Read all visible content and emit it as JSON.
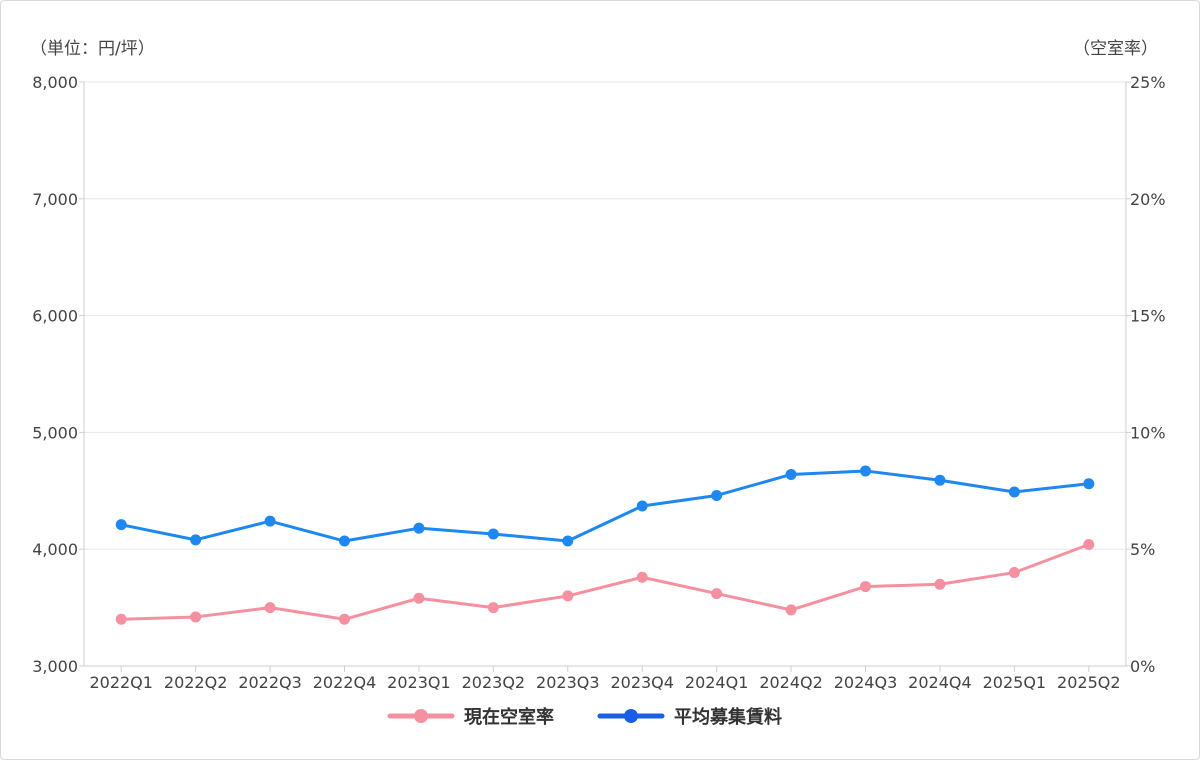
{
  "chart_data": {
    "type": "line",
    "left_unit_label": "（単位：円/坪）",
    "right_unit_label": "（空室率）",
    "categories": [
      "2022Q1",
      "2022Q2",
      "2022Q3",
      "2022Q4",
      "2023Q1",
      "2023Q2",
      "2023Q3",
      "2023Q4",
      "2024Q1",
      "2024Q2",
      "2024Q3",
      "2024Q4",
      "2025Q1",
      "2025Q2"
    ],
    "y_left": {
      "min": 3000,
      "max": 8000,
      "ticks": [
        "3,000",
        "4,000",
        "5,000",
        "6,000",
        "7,000",
        "8,000"
      ]
    },
    "y_right": {
      "min": 0,
      "max": 25,
      "ticks": [
        "0%",
        "5%",
        "10%",
        "15%",
        "20%",
        "25%"
      ]
    },
    "grid": true,
    "legend_position": "bottom",
    "series": [
      {
        "name": "現在空室率",
        "axis": "right",
        "color": "#f4909f",
        "values": [
          2.0,
          2.1,
          2.5,
          2.0,
          2.9,
          2.5,
          3.0,
          3.8,
          3.1,
          2.4,
          3.4,
          3.5,
          4.0,
          5.2
        ]
      },
      {
        "name": "平均募集賃料",
        "axis": "left",
        "color": "#1e88f0",
        "legend_color": "#1a5ee8",
        "values": [
          4210,
          4080,
          4240,
          4070,
          4180,
          4130,
          4070,
          4370,
          4460,
          4640,
          4670,
          4590,
          4490,
          4560
        ]
      }
    ]
  }
}
